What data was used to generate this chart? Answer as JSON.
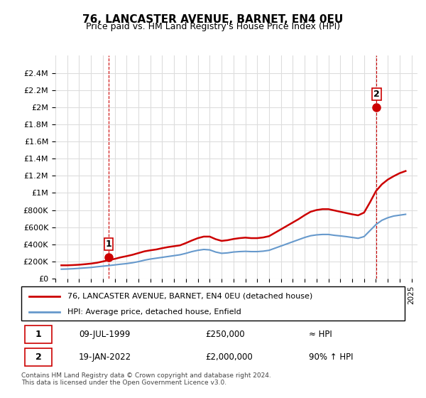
{
  "title": "76, LANCASTER AVENUE, BARNET, EN4 0EU",
  "subtitle": "Price paid vs. HM Land Registry's House Price Index (HPI)",
  "legend_line1": "76, LANCASTER AVENUE, BARNET, EN4 0EU (detached house)",
  "legend_line2": "HPI: Average price, detached house, Enfield",
  "table_row1": [
    "1",
    "09-JUL-1999",
    "£250,000",
    "≈ HPI"
  ],
  "table_row2": [
    "2",
    "19-JAN-2022",
    "£2,000,000",
    "90% ↑ HPI"
  ],
  "footer": "Contains HM Land Registry data © Crown copyright and database right 2024.\nThis data is licensed under the Open Government Licence v3.0.",
  "hpi_color": "#6699cc",
  "price_color": "#cc0000",
  "marker_color": "#cc0000",
  "background_color": "#ffffff",
  "grid_color": "#dddddd",
  "ylim": [
    0,
    2600000
  ],
  "yticks": [
    0,
    200000,
    400000,
    600000,
    800000,
    1000000,
    1200000,
    1400000,
    1600000,
    1800000,
    2000000,
    2200000,
    2400000
  ],
  "xlim_start": 1995.0,
  "xlim_end": 2025.5,
  "xticks": [
    1995,
    1996,
    1997,
    1998,
    1999,
    2000,
    2001,
    2002,
    2003,
    2004,
    2005,
    2006,
    2007,
    2008,
    2009,
    2010,
    2011,
    2012,
    2013,
    2014,
    2015,
    2016,
    2017,
    2018,
    2019,
    2020,
    2021,
    2022,
    2023,
    2024,
    2025
  ],
  "hpi_x": [
    1995.5,
    1996.0,
    1996.5,
    1997.0,
    1997.5,
    1998.0,
    1998.5,
    1999.0,
    1999.5,
    2000.0,
    2000.5,
    2001.0,
    2001.5,
    2002.0,
    2002.5,
    2003.0,
    2003.5,
    2004.0,
    2004.5,
    2005.0,
    2005.5,
    2006.0,
    2006.5,
    2007.0,
    2007.5,
    2008.0,
    2008.5,
    2009.0,
    2009.5,
    2010.0,
    2010.5,
    2011.0,
    2011.5,
    2012.0,
    2012.5,
    2013.0,
    2013.5,
    2014.0,
    2014.5,
    2015.0,
    2015.5,
    2016.0,
    2016.5,
    2017.0,
    2017.5,
    2018.0,
    2018.5,
    2019.0,
    2019.5,
    2020.0,
    2020.5,
    2021.0,
    2021.5,
    2022.0,
    2022.5,
    2023.0,
    2023.5,
    2024.0,
    2024.5
  ],
  "hpi_y": [
    110000,
    112000,
    115000,
    120000,
    125000,
    130000,
    138000,
    145000,
    152000,
    160000,
    168000,
    175000,
    185000,
    198000,
    215000,
    228000,
    238000,
    248000,
    258000,
    268000,
    278000,
    295000,
    315000,
    330000,
    340000,
    335000,
    310000,
    295000,
    300000,
    310000,
    315000,
    318000,
    315000,
    315000,
    320000,
    330000,
    355000,
    380000,
    405000,
    430000,
    455000,
    480000,
    500000,
    510000,
    515000,
    515000,
    505000,
    498000,
    490000,
    480000,
    470000,
    490000,
    560000,
    630000,
    680000,
    710000,
    730000,
    740000,
    750000
  ],
  "price_x": [
    1995.5,
    1996.0,
    1996.5,
    1997.0,
    1997.5,
    1998.0,
    1998.5,
    1999.0,
    1999.5,
    2000.0,
    2000.5,
    2001.0,
    2001.5,
    2002.0,
    2002.5,
    2003.0,
    2003.5,
    2004.0,
    2004.5,
    2005.0,
    2005.5,
    2006.0,
    2006.5,
    2007.0,
    2007.5,
    2008.0,
    2008.5,
    2009.0,
    2009.5,
    2010.0,
    2010.5,
    2011.0,
    2011.5,
    2012.0,
    2012.5,
    2013.0,
    2013.5,
    2014.0,
    2014.5,
    2015.0,
    2015.5,
    2016.0,
    2016.5,
    2017.0,
    2017.5,
    2018.0,
    2018.5,
    2019.0,
    2019.5,
    2020.0,
    2020.5,
    2021.0,
    2021.5,
    2022.0,
    2022.5,
    2023.0,
    2023.5,
    2024.0,
    2024.5
  ],
  "price_y": [
    155000,
    155000,
    158000,
    162000,
    168000,
    175000,
    185000,
    200000,
    215000,
    230000,
    248000,
    262000,
    278000,
    298000,
    318000,
    330000,
    340000,
    355000,
    368000,
    378000,
    388000,
    415000,
    445000,
    472000,
    490000,
    490000,
    460000,
    440000,
    448000,
    462000,
    472000,
    478000,
    472000,
    472000,
    480000,
    495000,
    535000,
    575000,
    615000,
    655000,
    695000,
    740000,
    780000,
    800000,
    810000,
    810000,
    795000,
    780000,
    765000,
    750000,
    738000,
    770000,
    890000,
    1020000,
    1100000,
    1155000,
    1195000,
    1230000,
    1255000
  ],
  "sale1_x": 1999.5,
  "sale1_y": 250000,
  "sale1_label": "1",
  "sale2_x": 2022.05,
  "sale2_y": 2000000,
  "sale2_label": "2",
  "marker_size": 8
}
